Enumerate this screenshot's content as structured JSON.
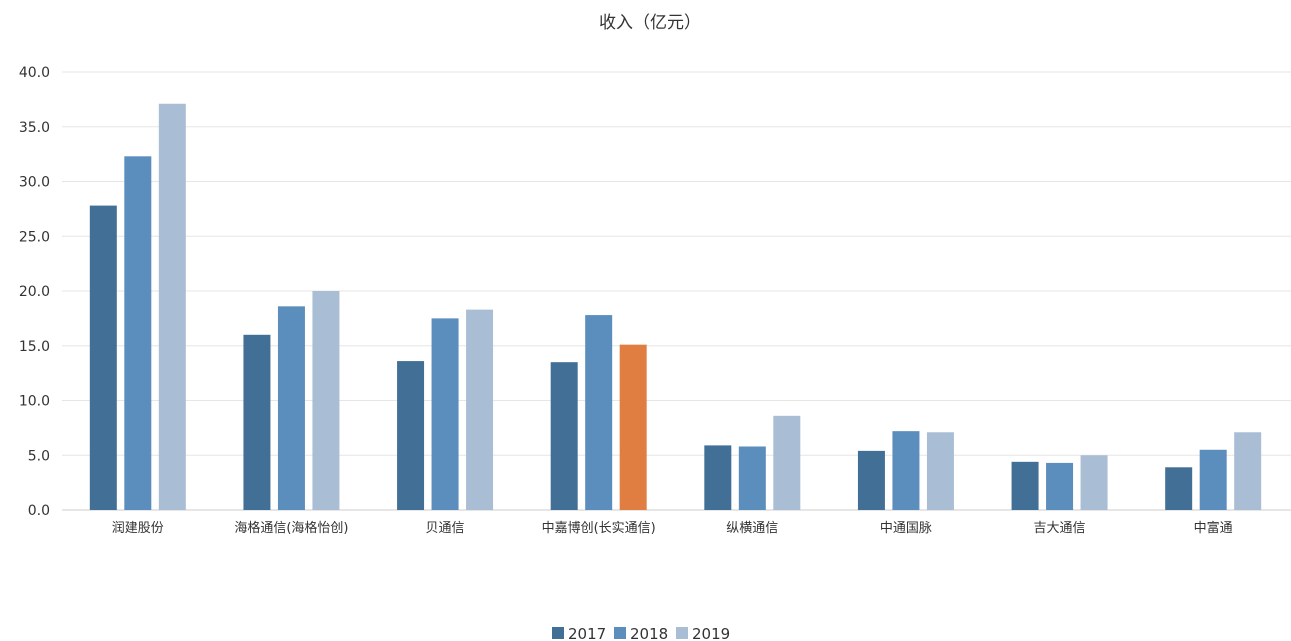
{
  "chart_data": {
    "type": "bar",
    "title": "收入（亿元）",
    "categories": [
      "润建股份",
      "海格通信(海格怡创)",
      "贝通信",
      "中嘉博创(长实通信)",
      "纵横通信",
      "中通国脉",
      "吉大通信",
      "中富通"
    ],
    "series": [
      {
        "name": "2017",
        "color": "#426f96",
        "values": [
          27.8,
          16.0,
          13.6,
          13.5,
          5.9,
          5.4,
          4.4,
          3.9
        ]
      },
      {
        "name": "2018",
        "color": "#5b8dbd",
        "values": [
          32.3,
          18.6,
          17.5,
          17.8,
          5.8,
          7.2,
          4.3,
          5.5
        ]
      },
      {
        "name": "2019",
        "color": "#a9bdd5",
        "values": [
          37.1,
          20.0,
          18.3,
          15.1,
          8.6,
          7.1,
          5.0,
          7.1
        ]
      }
    ],
    "highlight": {
      "category_index": 3,
      "series_index": 2,
      "color": "#e07d41"
    },
    "ylim": [
      0,
      40
    ],
    "yticks": [
      "0.0",
      "5.0",
      "10.0",
      "15.0",
      "20.0",
      "25.0",
      "30.0",
      "35.0",
      "40.0"
    ],
    "grid": true,
    "legend_position": "bottom-center"
  }
}
